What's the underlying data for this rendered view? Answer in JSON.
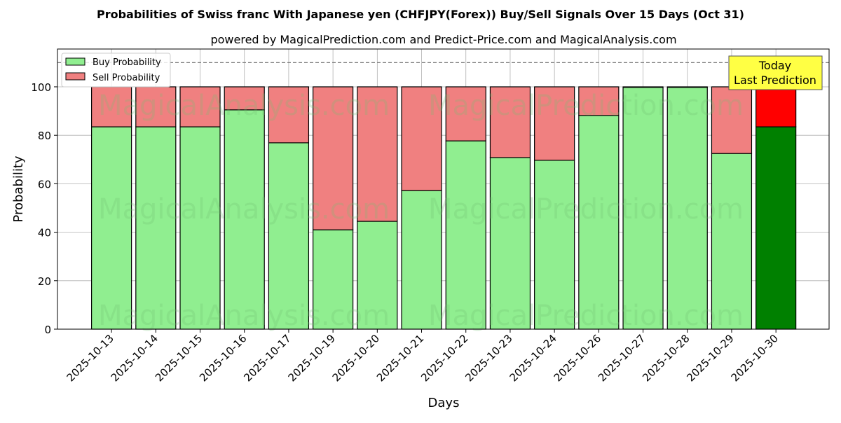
{
  "chart_data": {
    "type": "bar",
    "stacked": true,
    "title": "Probabilities of Swiss franc With Japanese yen (CHFJPY(Forex)) Buy/Sell Signals Over 15 Days (Oct 31)",
    "subtitle": "powered by MagicalPrediction.com and Predict-Price.com and MagicalAnalysis.com",
    "xlabel": "Days",
    "ylabel": "Probability",
    "ylim": [
      0,
      115.6
    ],
    "yticks": [
      0,
      20,
      40,
      60,
      80,
      100
    ],
    "grid": true,
    "legend_position": "top-left",
    "reference_line": 110,
    "categories": [
      "2025-10-13",
      "2025-10-14",
      "2025-10-15",
      "2025-10-16",
      "2025-10-17",
      "2025-10-19",
      "2025-10-20",
      "2025-10-21",
      "2025-10-22",
      "2025-10-23",
      "2025-10-24",
      "2025-10-26",
      "2025-10-27",
      "2025-10-28",
      "2025-10-29",
      "2025-10-30"
    ],
    "series": [
      {
        "name": "Buy Probability",
        "color": "#90ee90",
        "values": [
          83.5,
          83.5,
          83.5,
          90.5,
          76.9,
          41.0,
          44.5,
          57.2,
          77.7,
          70.8,
          69.7,
          88.2,
          99.8,
          99.8,
          72.5,
          83.5
        ]
      },
      {
        "name": "Sell Probability",
        "color": "#f08080",
        "values": [
          16.5,
          16.5,
          16.5,
          9.5,
          23.1,
          59.0,
          55.5,
          42.8,
          22.3,
          29.2,
          30.3,
          11.8,
          0.2,
          0.2,
          27.5,
          16.5
        ]
      }
    ],
    "highlight": {
      "index": 15,
      "buy_color": "#008000",
      "sell_color": "#ff0000",
      "annotation": [
        "Today",
        "Last Prediction"
      ],
      "annotation_color": "#ffff44"
    },
    "watermarks": [
      "MagicalAnalysis.com",
      "MagicalPrediction.com"
    ]
  }
}
